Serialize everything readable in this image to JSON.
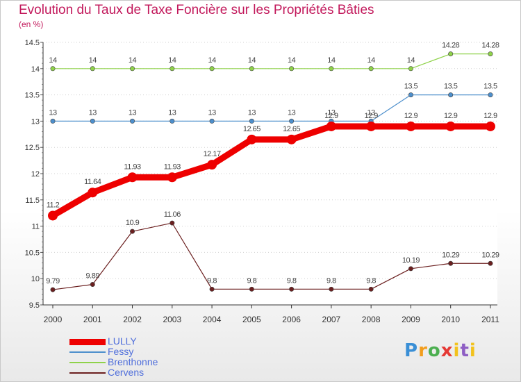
{
  "title": "Evolution du Taux de Taxe Foncière sur les Propriétés Bâties",
  "unit_label": "(en %)",
  "logo_text": "Proxiti",
  "chart_data": {
    "type": "line",
    "title": "Evolution du Taux de Taxe Foncière sur les Propriétés Bâties",
    "ylabel": "(en %)",
    "xlabel": "",
    "ylim": [
      9.5,
      14.5
    ],
    "y_ticks": [
      "9.5",
      "10",
      "10.5",
      "11",
      "11.5",
      "12",
      "12.5",
      "13",
      "13.5",
      "14",
      "14.5"
    ],
    "grid": "horizontal dotted",
    "categories": [
      "2000",
      "2001",
      "2002",
      "2003",
      "2004",
      "2005",
      "2006",
      "2007",
      "2008",
      "2009",
      "2010",
      "2011"
    ],
    "series": [
      {
        "name": "Brenthonne",
        "color": "#8fd24a",
        "values": [
          14,
          14,
          14,
          14,
          14,
          14,
          14,
          14,
          14,
          14,
          14.28,
          14.28
        ],
        "labels": [
          "14",
          "14",
          "14",
          "14",
          "14",
          "14",
          "14",
          "14",
          "14",
          "14",
          "14.28",
          "14.28"
        ]
      },
      {
        "name": "Fessy",
        "color": "#4d8fcc",
        "values": [
          13,
          13,
          13,
          13,
          13,
          13,
          13,
          13,
          13,
          13.5,
          13.5,
          13.5
        ],
        "labels": [
          "13",
          "13",
          "13",
          "13",
          "13",
          "13",
          "13",
          "13",
          "13",
          "13.5",
          "13.5",
          "13.5"
        ]
      },
      {
        "name": "Cervens",
        "color": "#6b1f1f",
        "values": [
          9.79,
          9.89,
          10.9,
          11.06,
          9.8,
          9.8,
          9.8,
          9.8,
          9.8,
          10.19,
          10.29,
          10.29
        ],
        "labels": [
          "9.79",
          "9.89",
          "10.9",
          "11.06",
          "9.8",
          "9.8",
          "9.8",
          "9.8",
          "9.8",
          "10.19",
          "10.29",
          "10.29"
        ]
      },
      {
        "name": "LULLY",
        "color": "#ee0000",
        "values": [
          11.2,
          11.64,
          11.93,
          11.93,
          12.17,
          12.65,
          12.65,
          12.9,
          12.9,
          12.9,
          12.9,
          12.9
        ],
        "labels": [
          "11.2",
          "11.64",
          "11.93",
          "11.93",
          "12.17",
          "12.65",
          "12.65",
          "12.9",
          "12.9",
          "12.9",
          "12.9",
          "12.9"
        ]
      }
    ],
    "legend": [
      "LULLY",
      "Fessy",
      "Brenthonne",
      "Cervens"
    ],
    "legend_position": "bottom-left"
  }
}
